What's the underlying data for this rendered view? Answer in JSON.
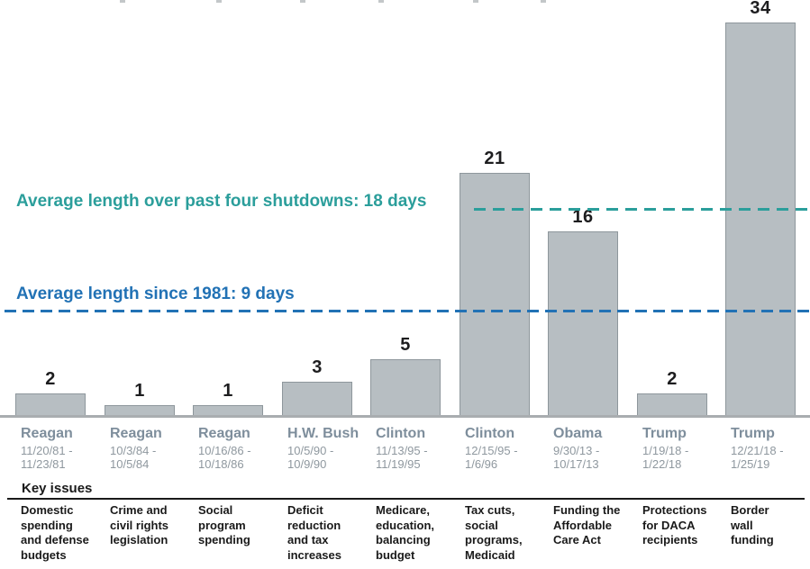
{
  "colors": {
    "background": "#ffffff",
    "bar_fill": "#b7bec2",
    "bar_border": "#8e979c",
    "axis_line": "#a9adb0",
    "value_label": "#1d1d1f",
    "president_label": "#7e8e9c",
    "date_label": "#8f989f",
    "teal_accent": "#2b9e9b",
    "blue_accent": "#2272b5",
    "key_issue_text": "#1a1a1a"
  },
  "chart_data": {
    "type": "bar",
    "unit": "days",
    "ylim": [
      0,
      34
    ],
    "key_issues_label": "Key issues",
    "bars": [
      {
        "president": "Reagan",
        "date_range": "11/20/81 -\n11/23/81",
        "days": 2,
        "key_issue": "Domestic\nspending\nand defense\nbudgets"
      },
      {
        "president": "Reagan",
        "date_range": "10/3/84 -\n10/5/84",
        "days": 1,
        "key_issue": "Crime and\ncivil rights\nlegislation"
      },
      {
        "president": "Reagan",
        "date_range": "10/16/86 -\n10/18/86",
        "days": 1,
        "key_issue": "Social\nprogram\nspending"
      },
      {
        "president": "H.W. Bush",
        "date_range": "10/5/90 -\n10/9/90",
        "days": 3,
        "key_issue": "Deficit\nreduction\nand tax\nincreases"
      },
      {
        "president": "Clinton",
        "date_range": "11/13/95 -\n11/19/95",
        "days": 5,
        "key_issue": "Medicare,\neducation,\nbalancing\nbudget"
      },
      {
        "president": "Clinton",
        "date_range": "12/15/95 -\n1/6/96",
        "days": 21,
        "key_issue": "Tax cuts,\nsocial\nprograms,\nMedicaid"
      },
      {
        "president": "Obama",
        "date_range": "9/30/13 -\n10/17/13",
        "days": 16,
        "key_issue": "Funding the\nAffordable\nCare Act"
      },
      {
        "president": "Trump",
        "date_range": "1/19/18 -\n1/22/18",
        "days": 2,
        "key_issue": "Protections\nfor DACA\nrecipients"
      },
      {
        "president": "Trump",
        "date_range": "12/21/18 -\n1/25/19",
        "days": 34,
        "key_issue": "Border\nwall\nfunding"
      }
    ],
    "annotations": [
      {
        "label": "Average length over past four shutdowns: 18 days",
        "value": 18,
        "color": "#2b9e9b",
        "style": "dashed"
      },
      {
        "label": "Average length since 1981: 9 days",
        "value": 9,
        "color": "#2272b5",
        "style": "dashed"
      }
    ]
  }
}
